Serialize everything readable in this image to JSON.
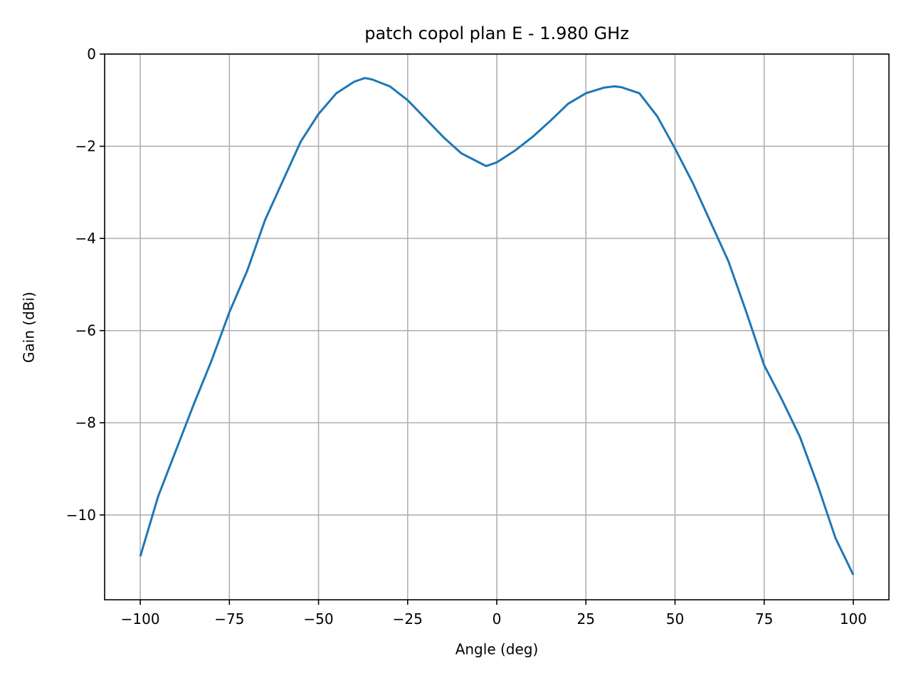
{
  "chart_data": {
    "type": "line",
    "title": "patch copol plan E - 1.980 GHz",
    "x_label": "Angle (deg)",
    "y_label": "Gain (dBi)",
    "x": [
      -100,
      -95,
      -90,
      -85,
      -80,
      -75,
      -70,
      -65,
      -60,
      -55,
      -50,
      -45,
      -40,
      -37,
      -35,
      -30,
      -25,
      -20,
      -15,
      -10,
      -5,
      -3,
      0,
      5,
      10,
      15,
      20,
      25,
      30,
      33,
      35,
      40,
      45,
      50,
      55,
      60,
      65,
      70,
      75,
      80,
      85,
      90,
      95,
      100
    ],
    "series": [
      {
        "name": "Gain",
        "color": "#1f77b4",
        "values": [
          -10.9,
          -9.6,
          -8.6,
          -7.6,
          -6.65,
          -5.6,
          -4.7,
          -3.6,
          -2.75,
          -1.9,
          -1.3,
          -0.85,
          -0.6,
          -0.52,
          -0.55,
          -0.7,
          -1.0,
          -1.4,
          -1.8,
          -2.15,
          -2.35,
          -2.43,
          -2.35,
          -2.1,
          -1.8,
          -1.45,
          -1.08,
          -0.85,
          -0.73,
          -0.7,
          -0.72,
          -0.85,
          -1.35,
          -2.05,
          -2.8,
          -3.65,
          -4.5,
          -5.6,
          -6.75,
          -7.5,
          -8.3,
          -9.35,
          -10.5,
          -11.3
        ]
      }
    ],
    "xlim": [
      -110,
      110
    ],
    "xticks": [
      {
        "value": -100,
        "label": "−100"
      },
      {
        "value": -75,
        "label": "−75"
      },
      {
        "value": -50,
        "label": "−50"
      },
      {
        "value": -25,
        "label": "−25"
      },
      0,
      25,
      50,
      75,
      100
    ],
    "ylim": [
      -11.84,
      0
    ],
    "yticks": [
      {
        "value": -10,
        "label": "−10"
      },
      {
        "value": -8,
        "label": "−8"
      },
      {
        "value": -6,
        "label": "−6"
      },
      {
        "value": -4,
        "label": "−4"
      },
      {
        "value": -2,
        "label": "−2"
      },
      0
    ],
    "grid": true
  }
}
